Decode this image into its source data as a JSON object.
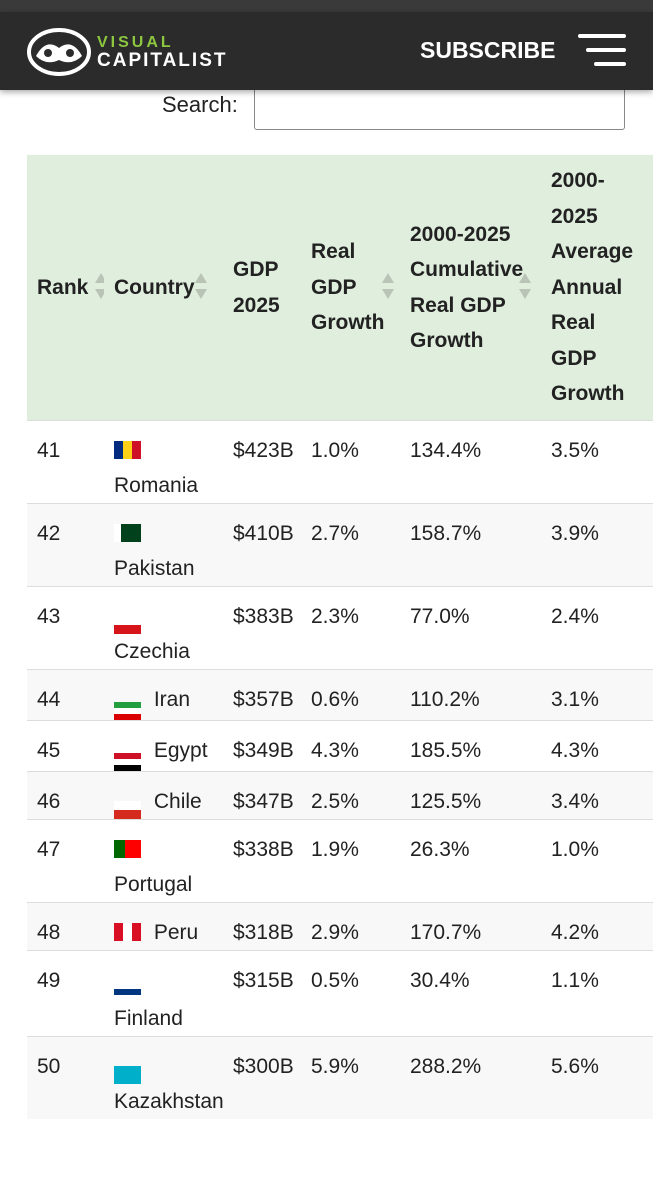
{
  "header": {
    "logo_top": "VISUAL",
    "logo_bottom": "CAPITALIST",
    "subscribe": "SUBSCRIBE"
  },
  "search": {
    "label": "Search:"
  },
  "table": {
    "columns": [
      "Rank",
      "Country",
      "GDP 2025",
      "Real GDP Growth",
      "2000-2025 Cumulative Real GDP Growth",
      "2000-2025 Average Annual Real GDP Growth"
    ],
    "rows": [
      [
        "41",
        "Romania",
        "$423B",
        "1.0%",
        "134.4%",
        "3.5%"
      ],
      [
        "42",
        "Pakistan",
        "$410B",
        "2.7%",
        "158.7%",
        "3.9%"
      ],
      [
        "43",
        "Czechia",
        "$383B",
        "2.3%",
        "77.0%",
        "2.4%"
      ],
      [
        "44",
        "Iran",
        "$357B",
        "0.6%",
        "110.2%",
        "3.1%"
      ],
      [
        "45",
        "Egypt",
        "$349B",
        "4.3%",
        "185.5%",
        "4.3%"
      ],
      [
        "46",
        "Chile",
        "$347B",
        "2.5%",
        "125.5%",
        "3.4%"
      ],
      [
        "47",
        "Portugal",
        "$338B",
        "1.9%",
        "26.3%",
        "1.0%"
      ],
      [
        "48",
        "Peru",
        "$318B",
        "2.9%",
        "170.7%",
        "4.2%"
      ],
      [
        "49",
        "Finland",
        "$315B",
        "0.5%",
        "30.4%",
        "1.1%"
      ],
      [
        "50",
        "Kazakhstan",
        "$300B",
        "5.9%",
        "288.2%",
        "5.6%"
      ]
    ]
  }
}
